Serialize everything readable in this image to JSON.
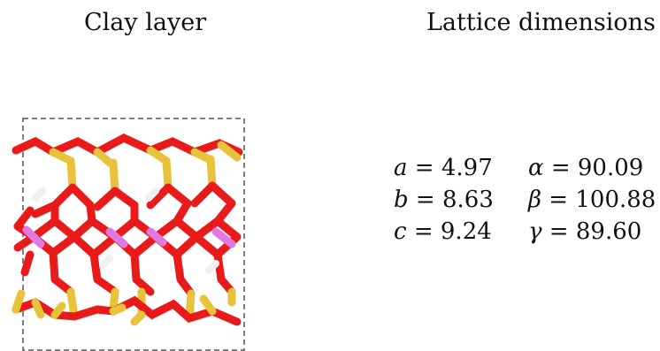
{
  "headings": {
    "left": "Clay layer",
    "right": "Lattice dimensions"
  },
  "lattice": {
    "rows": [
      {
        "p1": "a",
        "v1": "4.97",
        "p2": "α",
        "v2": "90.09"
      },
      {
        "p1": "b",
        "v1": "8.63",
        "p2": "β",
        "v2": "100.88"
      },
      {
        "p1": "c",
        "v1": "9.24",
        "p2": "γ",
        "v2": "89.60"
      }
    ]
  },
  "colors": {
    "oxygen": "#e81a1a",
    "silicon": "#e8c23a",
    "aluminum": "#e07ae0",
    "hydrogen": "#f0f0f0",
    "cell_border": "#555555"
  }
}
